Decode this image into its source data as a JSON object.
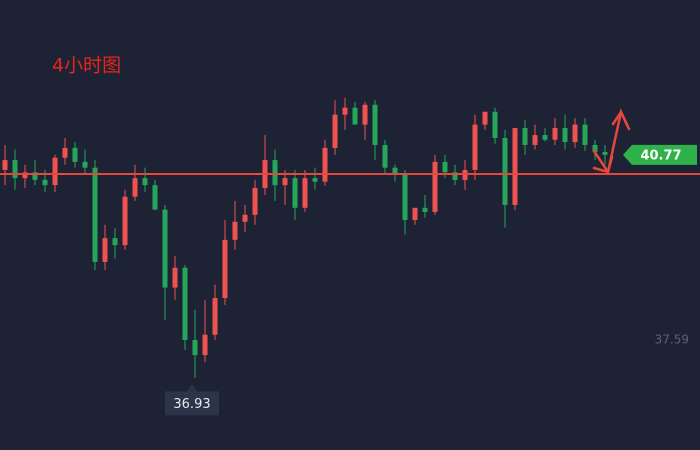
{
  "chart_data": {
    "type": "candlestick",
    "title": "4小时图",
    "open": [
      40.51,
      40.68,
      40.37,
      40.47,
      40.34,
      40.25,
      40.72,
      40.89,
      40.65,
      40.55,
      38.93,
      39.34,
      39.22,
      40.05,
      40.37,
      40.25,
      39.83,
      38.49,
      38.83,
      37.59,
      37.33,
      37.68,
      38.31,
      39.31,
      39.62,
      39.74,
      40.2,
      40.68,
      40.25,
      40.37,
      39.86,
      40.37,
      40.31,
      40.89,
      41.46,
      41.58,
      41.29,
      41.63,
      40.94,
      40.55,
      40.44,
      39.65,
      39.86,
      39.79,
      40.65,
      40.47,
      40.34,
      40.51,
      41.29,
      41.51,
      41.06,
      39.91,
      41.23,
      40.94,
      41.11,
      41.03,
      41.23,
      40.99,
      41.29,
      40.94,
      40.82
    ],
    "high": [
      40.94,
      40.86,
      40.6,
      40.68,
      40.51,
      40.77,
      41.06,
      40.99,
      40.86,
      40.68,
      39.57,
      39.51,
      40.17,
      40.6,
      40.55,
      40.34,
      39.91,
      39.03,
      38.88,
      38.11,
      38.27,
      38.54,
      39.65,
      39.98,
      39.91,
      40.34,
      41.11,
      40.86,
      40.51,
      40.51,
      40.51,
      40.55,
      41.03,
      41.71,
      41.75,
      41.68,
      41.68,
      41.71,
      41.03,
      40.6,
      40.51,
      39.86,
      40.08,
      40.77,
      40.77,
      40.6,
      40.68,
      41.46,
      41.51,
      41.58,
      41.2,
      41.23,
      41.37,
      41.29,
      41.23,
      41.4,
      41.46,
      41.4,
      41.4,
      41.03,
      40.94
    ],
    "low": [
      40.25,
      40.17,
      40.2,
      40.25,
      40.13,
      40.13,
      40.6,
      40.55,
      40.44,
      38.79,
      38.79,
      38.99,
      39.14,
      39.98,
      40.13,
      39.82,
      37.93,
      38.28,
      37.42,
      36.94,
      37.21,
      37.59,
      38.19,
      39.14,
      39.45,
      39.57,
      40.08,
      39.98,
      39.91,
      39.65,
      39.79,
      40.17,
      40.24,
      40.77,
      41.2,
      41.29,
      41.03,
      40.68,
      40.44,
      40.31,
      39.4,
      39.57,
      39.69,
      39.74,
      40.37,
      40.25,
      40.17,
      40.34,
      41.2,
      40.96,
      39.52,
      39.82,
      40.77,
      40.86,
      41.0,
      40.94,
      40.86,
      40.89,
      40.84,
      40.68,
      40.6
    ],
    "close": [
      40.68,
      40.37,
      40.47,
      40.34,
      40.25,
      40.72,
      40.89,
      40.65,
      40.55,
      38.93,
      39.34,
      39.22,
      40.05,
      40.37,
      40.25,
      39.83,
      38.49,
      38.83,
      37.59,
      37.33,
      37.68,
      38.31,
      39.31,
      39.62,
      39.74,
      40.2,
      40.68,
      40.25,
      40.37,
      39.86,
      40.37,
      40.31,
      40.89,
      41.46,
      41.58,
      41.29,
      41.63,
      40.94,
      40.55,
      40.44,
      39.65,
      39.86,
      39.79,
      40.65,
      40.47,
      40.34,
      40.51,
      41.29,
      41.51,
      41.06,
      39.91,
      41.23,
      40.94,
      41.11,
      41.03,
      41.23,
      40.99,
      41.29,
      40.94,
      40.82,
      40.77
    ],
    "up_color": "#ef5350",
    "down_color": "#26a65b",
    "ylim": [
      35.7,
      43.43
    ],
    "yticks": [
      37.59
    ],
    "level_line": 40.44,
    "level_color": "#e5483a",
    "current_price": 40.77,
    "low_marker": 36.93
  }
}
